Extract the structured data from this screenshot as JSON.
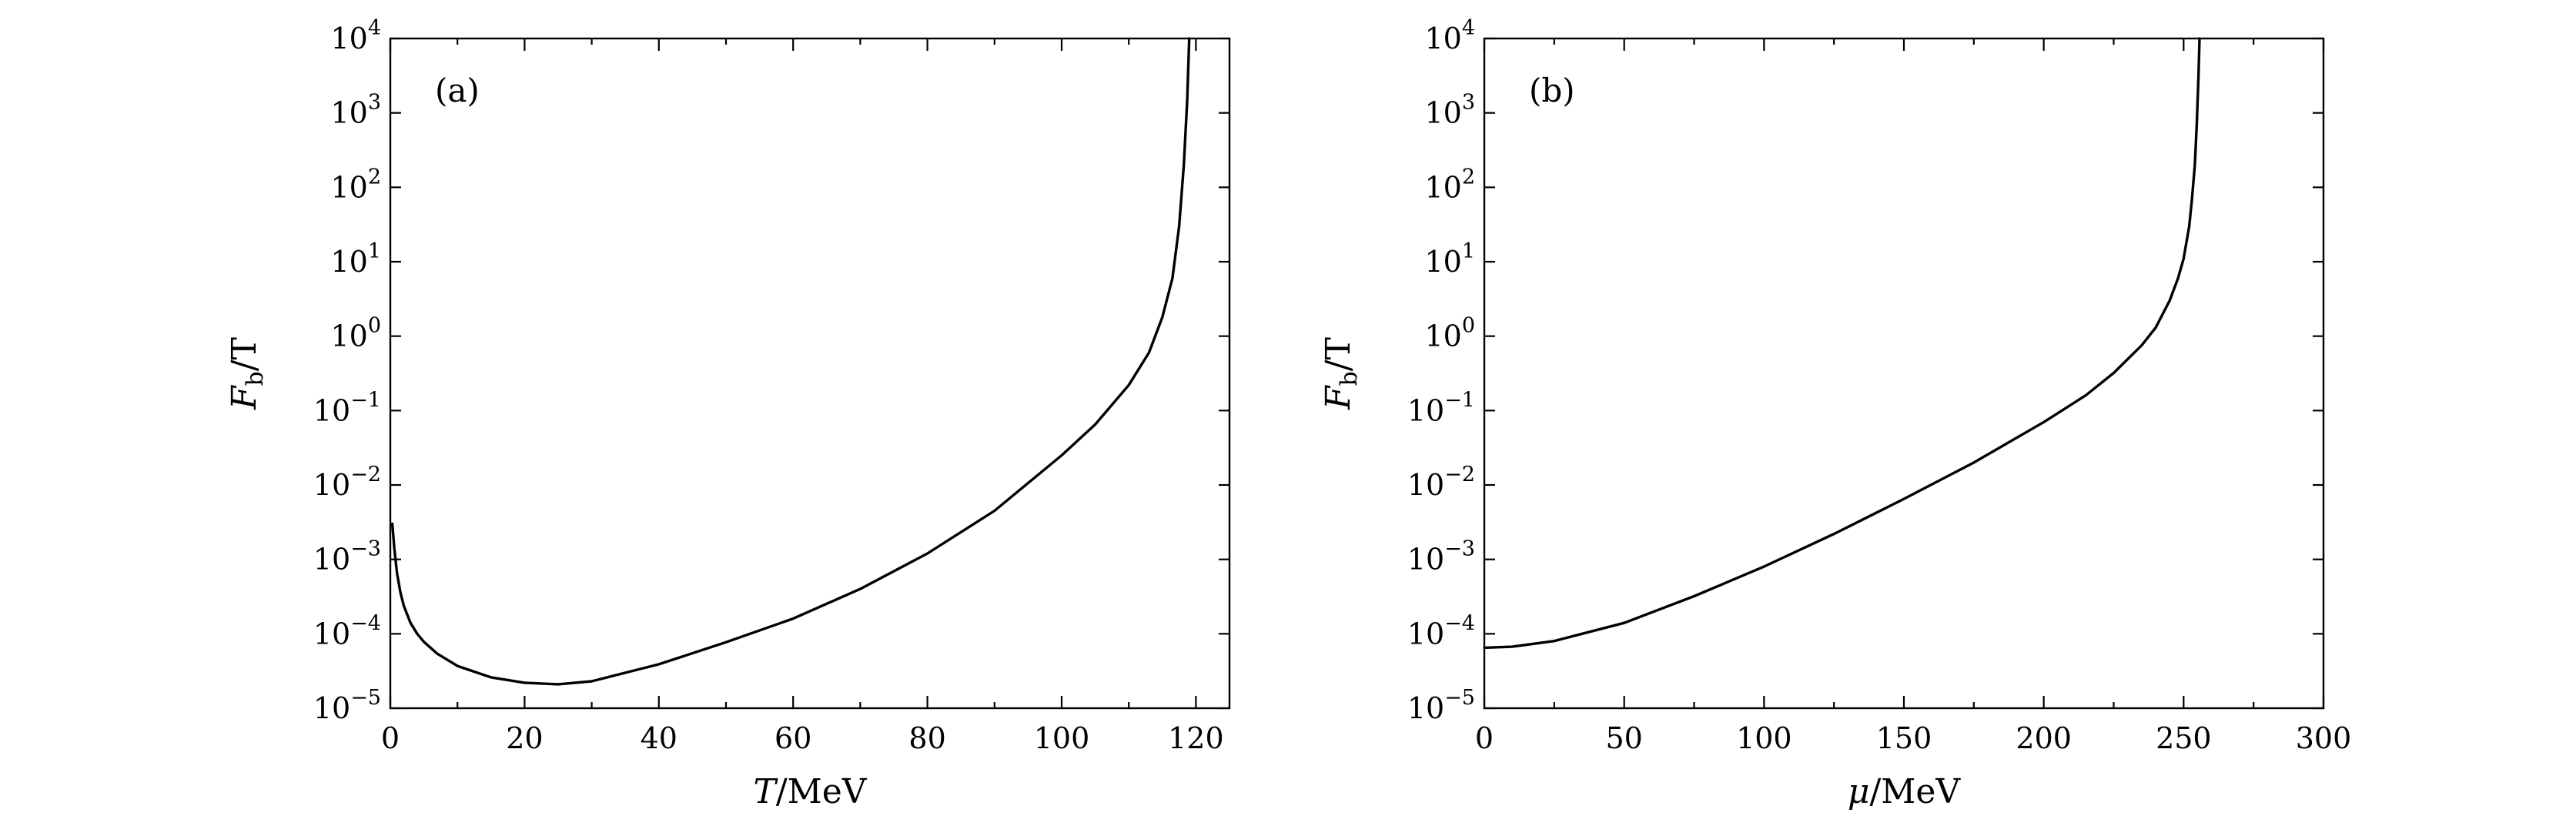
{
  "chart_data": [
    {
      "type": "line",
      "panel_label": "(a)",
      "xlabel": {
        "var": "T",
        "unit": "/MeV"
      },
      "ylabel": {
        "var": "F",
        "sub": "b",
        "unit": "/T"
      },
      "xlim": [
        0,
        125
      ],
      "ylim": [
        1e-05,
        10000.0
      ],
      "yscale": "log",
      "xticks": [
        0,
        20,
        40,
        60,
        80,
        100,
        120
      ],
      "x_minor_step": 10,
      "yticks": [
        -5,
        -4,
        -3,
        -2,
        -1,
        0,
        1,
        2,
        3,
        4
      ],
      "grid": false,
      "series": [
        {
          "points": [
            [
              0.3,
              0.003
            ],
            [
              0.6,
              0.0014
            ],
            [
              1,
              0.00065
            ],
            [
              1.5,
              0.00036
            ],
            [
              2,
              0.00024
            ],
            [
              3,
              0.00014
            ],
            [
              4,
              0.0001
            ],
            [
              5,
              7.8e-05
            ],
            [
              7,
              5.4e-05
            ],
            [
              10,
              3.7e-05
            ],
            [
              15,
              2.6e-05
            ],
            [
              20,
              2.2e-05
            ],
            [
              25,
              2.1e-05
            ],
            [
              30,
              2.3e-05
            ],
            [
              40,
              3.9e-05
            ],
            [
              50,
              7.7e-05
            ],
            [
              60,
              0.00016
            ],
            [
              70,
              0.0004
            ],
            [
              80,
              0.0012
            ],
            [
              90,
              0.0045
            ],
            [
              100,
              0.025
            ],
            [
              105,
              0.065
            ],
            [
              110,
              0.22
            ],
            [
              113,
              0.6
            ],
            [
              115,
              1.8
            ],
            [
              116.5,
              6
            ],
            [
              117.5,
              30.0
            ],
            [
              118.2,
              200.0
            ],
            [
              118.7,
              1500.0
            ],
            [
              119,
              10000.0
            ]
          ]
        }
      ]
    },
    {
      "type": "line",
      "panel_label": "(b)",
      "xlabel": {
        "var": "μ",
        "unit": "/MeV"
      },
      "ylabel": {
        "var": "F",
        "sub": "b",
        "unit": "/T"
      },
      "xlim": [
        0,
        300
      ],
      "ylim": [
        1e-05,
        10000.0
      ],
      "yscale": "log",
      "xticks": [
        0,
        50,
        100,
        150,
        200,
        250,
        300
      ],
      "x_minor_step": 25,
      "yticks": [
        -5,
        -4,
        -3,
        -2,
        -1,
        0,
        1,
        2,
        3,
        4
      ],
      "grid": false,
      "series": [
        {
          "points": [
            [
              0,
              6.5e-05
            ],
            [
              10,
              6.7e-05
            ],
            [
              25,
              8e-05
            ],
            [
              50,
              0.00014
            ],
            [
              75,
              0.00032
            ],
            [
              100,
              0.0008
            ],
            [
              125,
              0.0022
            ],
            [
              150,
              0.0065
            ],
            [
              175,
              0.02
            ],
            [
              200,
              0.07
            ],
            [
              215,
              0.16
            ],
            [
              225,
              0.32
            ],
            [
              235,
              0.75
            ],
            [
              240,
              1.3
            ],
            [
              245,
              3
            ],
            [
              248,
              6
            ],
            [
              250,
              11.0
            ],
            [
              252,
              30.0
            ],
            [
              253,
              70.0
            ],
            [
              254,
              200.0
            ],
            [
              254.7,
              700.0
            ],
            [
              255.3,
              3000.0
            ],
            [
              255.7,
              10000.0
            ]
          ]
        }
      ]
    }
  ]
}
